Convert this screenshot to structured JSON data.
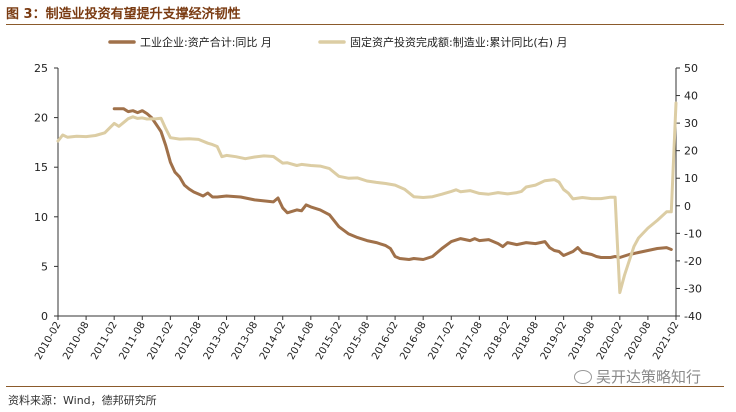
{
  "title": "图 3：制造业投资有望提升支撑经济韧性",
  "source": "资料来源：Wind，德邦研究所",
  "watermark": "吴开达策略知行",
  "colors": {
    "series1": "#a0714a",
    "series2": "#dccda4",
    "title": "#7a3b12"
  },
  "chart_data": {
    "type": "line",
    "grid": false,
    "legend_position": "top",
    "y_left": {
      "min": 0,
      "max": 25,
      "ticks": [
        0,
        5,
        10,
        15,
        20,
        25
      ]
    },
    "y_right": {
      "min": -40,
      "max": 50,
      "ticks": [
        -40,
        -30,
        -20,
        -10,
        0,
        10,
        20,
        30,
        40,
        50
      ]
    },
    "x_range": [
      "2010-02",
      "2021-02"
    ],
    "x_ticks": [
      "2010-02",
      "2010-08",
      "2011-02",
      "2011-08",
      "2012-02",
      "2012-08",
      "2013-02",
      "2013-08",
      "2014-02",
      "2014-08",
      "2015-02",
      "2015-08",
      "2016-02",
      "2016-08",
      "2017-02",
      "2017-08",
      "2018-02",
      "2018-08",
      "2019-02",
      "2019-08",
      "2020-02",
      "2020-08",
      "2021-02"
    ],
    "series": [
      {
        "name": "工业企业:资产合计:同比 月",
        "axis": "left",
        "points": [
          [
            "2011-02",
            20.9
          ],
          [
            "2011-04",
            20.9
          ],
          [
            "2011-05",
            20.6
          ],
          [
            "2011-06",
            20.7
          ],
          [
            "2011-07",
            20.5
          ],
          [
            "2011-08",
            20.7
          ],
          [
            "2011-09",
            20.4
          ],
          [
            "2011-10",
            20.0
          ],
          [
            "2011-11",
            19.3
          ],
          [
            "2011-12",
            18.6
          ],
          [
            "2012-01",
            17.2
          ],
          [
            "2012-02",
            15.5
          ],
          [
            "2012-03",
            14.5
          ],
          [
            "2012-04",
            14.0
          ],
          [
            "2012-05",
            13.2
          ],
          [
            "2012-06",
            12.8
          ],
          [
            "2012-07",
            12.5
          ],
          [
            "2012-08",
            12.3
          ],
          [
            "2012-09",
            12.1
          ],
          [
            "2012-10",
            12.4
          ],
          [
            "2012-11",
            12.0
          ],
          [
            "2012-12",
            12.0
          ],
          [
            "2013-02",
            12.1
          ],
          [
            "2013-05",
            12.0
          ],
          [
            "2013-08",
            11.7
          ],
          [
            "2013-10",
            11.6
          ],
          [
            "2013-12",
            11.5
          ],
          [
            "2014-01",
            11.9
          ],
          [
            "2014-02",
            10.9
          ],
          [
            "2014-03",
            10.4
          ],
          [
            "2014-05",
            10.7
          ],
          [
            "2014-06",
            10.6
          ],
          [
            "2014-07",
            11.2
          ],
          [
            "2014-08",
            11.0
          ],
          [
            "2014-10",
            10.7
          ],
          [
            "2014-12",
            10.2
          ],
          [
            "2015-02",
            9.0
          ],
          [
            "2015-04",
            8.3
          ],
          [
            "2015-06",
            7.9
          ],
          [
            "2015-08",
            7.6
          ],
          [
            "2015-10",
            7.4
          ],
          [
            "2015-12",
            7.1
          ],
          [
            "2016-01",
            6.8
          ],
          [
            "2016-02",
            6.0
          ],
          [
            "2016-03",
            5.8
          ],
          [
            "2016-05",
            5.7
          ],
          [
            "2016-06",
            5.8
          ],
          [
            "2016-08",
            5.7
          ],
          [
            "2016-10",
            6.0
          ],
          [
            "2016-12",
            6.8
          ],
          [
            "2017-02",
            7.5
          ],
          [
            "2017-04",
            7.8
          ],
          [
            "2017-06",
            7.6
          ],
          [
            "2017-07",
            7.8
          ],
          [
            "2017-08",
            7.6
          ],
          [
            "2017-10",
            7.7
          ],
          [
            "2017-12",
            7.3
          ],
          [
            "2018-01",
            7.0
          ],
          [
            "2018-02",
            7.4
          ],
          [
            "2018-04",
            7.2
          ],
          [
            "2018-06",
            7.4
          ],
          [
            "2018-08",
            7.3
          ],
          [
            "2018-10",
            7.5
          ],
          [
            "2018-11",
            6.9
          ],
          [
            "2018-12",
            6.6
          ],
          [
            "2019-01",
            6.5
          ],
          [
            "2019-02",
            6.1
          ],
          [
            "2019-04",
            6.5
          ],
          [
            "2019-05",
            6.9
          ],
          [
            "2019-06",
            6.4
          ],
          [
            "2019-08",
            6.2
          ],
          [
            "2019-09",
            6.0
          ],
          [
            "2019-10",
            5.9
          ],
          [
            "2019-12",
            5.9
          ],
          [
            "2020-01",
            6.0
          ],
          [
            "2020-02",
            5.9
          ],
          [
            "2020-04",
            6.2
          ],
          [
            "2020-06",
            6.4
          ],
          [
            "2020-08",
            6.6
          ],
          [
            "2020-10",
            6.8
          ],
          [
            "2020-12",
            6.9
          ],
          [
            "2021-01",
            6.7
          ]
        ]
      },
      {
        "name": "固定资产投资完成额:制造业:累计同比(右) 月",
        "axis": "right",
        "points": [
          [
            "2010-02",
            23.5
          ],
          [
            "2010-03",
            25.7
          ],
          [
            "2010-04",
            24.9
          ],
          [
            "2010-06",
            25.2
          ],
          [
            "2010-08",
            25.1
          ],
          [
            "2010-10",
            25.5
          ],
          [
            "2010-12",
            26.5
          ],
          [
            "2011-02",
            29.9
          ],
          [
            "2011-03",
            28.8
          ],
          [
            "2011-05",
            31.6
          ],
          [
            "2011-06",
            32.3
          ],
          [
            "2011-07",
            31.7
          ],
          [
            "2011-08",
            31.9
          ],
          [
            "2011-09",
            31.5
          ],
          [
            "2011-11",
            31.6
          ],
          [
            "2011-12",
            31.8
          ],
          [
            "2012-01",
            28.0
          ],
          [
            "2012-02",
            24.7
          ],
          [
            "2012-04",
            24.2
          ],
          [
            "2012-06",
            24.3
          ],
          [
            "2012-08",
            24.1
          ],
          [
            "2012-10",
            22.7
          ],
          [
            "2012-11",
            22.2
          ],
          [
            "2012-12",
            21.5
          ],
          [
            "2013-01",
            17.8
          ],
          [
            "2013-02",
            18.3
          ],
          [
            "2013-04",
            17.8
          ],
          [
            "2013-06",
            17.1
          ],
          [
            "2013-08",
            17.7
          ],
          [
            "2013-10",
            18.1
          ],
          [
            "2013-12",
            17.9
          ],
          [
            "2014-02",
            15.5
          ],
          [
            "2014-03",
            15.6
          ],
          [
            "2014-05",
            14.6
          ],
          [
            "2014-06",
            15.0
          ],
          [
            "2014-08",
            14.6
          ],
          [
            "2014-10",
            14.4
          ],
          [
            "2014-12",
            13.5
          ],
          [
            "2015-02",
            10.7
          ],
          [
            "2015-04",
            10.0
          ],
          [
            "2015-06",
            10.1
          ],
          [
            "2015-08",
            9.0
          ],
          [
            "2015-10",
            8.5
          ],
          [
            "2015-12",
            8.1
          ],
          [
            "2016-02",
            7.5
          ],
          [
            "2016-04",
            6.0
          ],
          [
            "2016-06",
            3.3
          ],
          [
            "2016-08",
            3.0
          ],
          [
            "2016-10",
            3.3
          ],
          [
            "2016-12",
            4.2
          ],
          [
            "2017-02",
            5.2
          ],
          [
            "2017-03",
            5.8
          ],
          [
            "2017-04",
            5.1
          ],
          [
            "2017-06",
            5.5
          ],
          [
            "2017-08",
            4.5
          ],
          [
            "2017-10",
            4.2
          ],
          [
            "2017-12",
            4.8
          ],
          [
            "2018-02",
            4.3
          ],
          [
            "2018-04",
            4.8
          ],
          [
            "2018-05",
            5.2
          ],
          [
            "2018-06",
            6.8
          ],
          [
            "2018-08",
            7.5
          ],
          [
            "2018-10",
            9.1
          ],
          [
            "2018-12",
            9.5
          ],
          [
            "2019-01",
            8.6
          ],
          [
            "2019-02",
            5.9
          ],
          [
            "2019-03",
            4.6
          ],
          [
            "2019-04",
            2.5
          ],
          [
            "2019-06",
            3.0
          ],
          [
            "2019-08",
            2.6
          ],
          [
            "2019-10",
            2.6
          ],
          [
            "2019-12",
            3.1
          ],
          [
            "2020-01",
            3.1
          ],
          [
            "2020-02",
            -31.5
          ],
          [
            "2020-03",
            -25.2
          ],
          [
            "2020-05",
            -14.8
          ],
          [
            "2020-06",
            -11.7
          ],
          [
            "2020-08",
            -8.1
          ],
          [
            "2020-10",
            -5.3
          ],
          [
            "2020-12",
            -2.2
          ],
          [
            "2021-01",
            -2.2
          ],
          [
            "2021-02",
            37.3
          ]
        ]
      }
    ]
  }
}
